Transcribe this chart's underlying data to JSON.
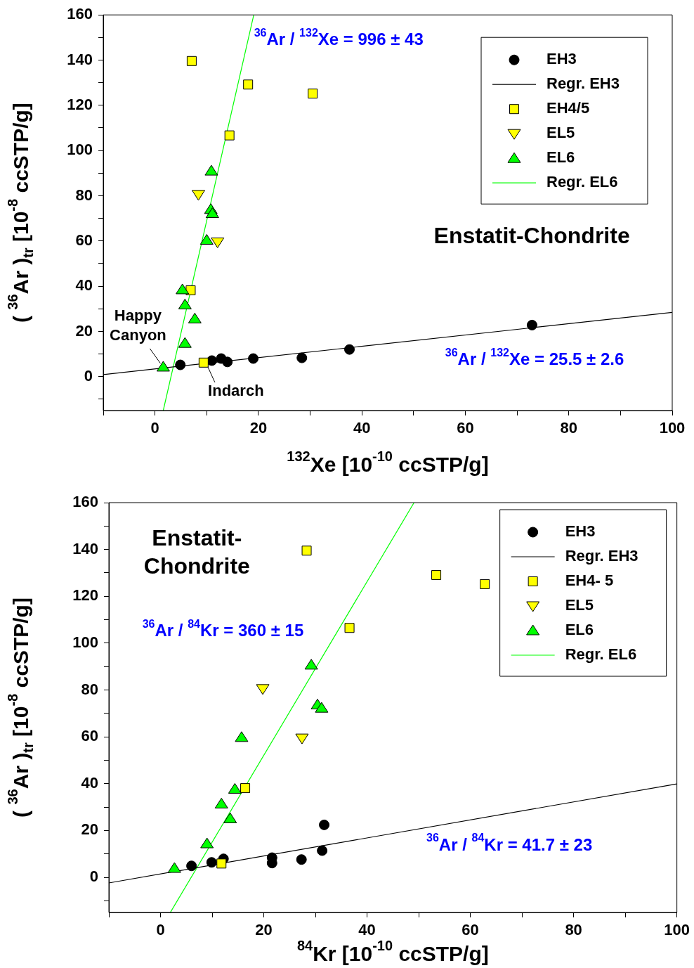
{
  "chart_data": [
    {
      "type": "scatter",
      "xlabel": "$^{132}$Xe [10$^{-10}$ ccSTP/g]",
      "ylabel": "( $^{36}$Ar )$_{tr}$ [10$^{-8}$ ccSTP/g]",
      "xlim": [
        -10,
        100
      ],
      "ylim": [
        -15,
        160
      ],
      "xticks": [
        {
          "value": -10,
          "label": null
        },
        0,
        {
          "value": 10,
          "label": null
        },
        20,
        {
          "value": 30,
          "label": null
        },
        40,
        {
          "value": 50,
          "label": null
        },
        60,
        {
          "value": 70,
          "label": null
        },
        80,
        {
          "value": 90,
          "label": null
        },
        100
      ],
      "yticks": [
        {
          "value": -10,
          "label": null
        },
        0,
        {
          "value": 10,
          "label": null
        },
        20,
        {
          "value": 30,
          "label": null
        },
        40,
        {
          "value": 50,
          "label": null
        },
        60,
        {
          "value": 70,
          "label": null
        },
        80,
        {
          "value": 90,
          "label": null
        },
        100,
        {
          "value": 110,
          "label": null
        },
        120,
        {
          "value": 130,
          "label": null
        },
        140,
        {
          "value": 150,
          "label": null
        },
        160
      ],
      "legend": "top right",
      "series": [
        {
          "name": "EH3",
          "type": "scatter",
          "marker": "circle",
          "color": "#000000",
          "x": [
            4.9,
            11.0,
            12.8,
            14.0,
            19.0,
            28.4,
            37.6,
            72.9
          ],
          "values": [
            5.2,
            7.1,
            8.0,
            6.5,
            8.0,
            8.3,
            12.0,
            22.8
          ]
        },
        {
          "name": "Regr. EH3",
          "type": "line",
          "marker": "none",
          "color": "#000000",
          "x": [
            -10,
            100
          ],
          "values": [
            0.9,
            28.4
          ]
        },
        {
          "name": "EH4/5",
          "type": "scatter",
          "marker": "square",
          "color": "#ffff00",
          "x": [
            7.1,
            18.0,
            30.5,
            14.4,
            6.9,
            9.4
          ],
          "values": [
            139.6,
            129.2,
            125.2,
            106.7,
            38.2,
            6.2
          ]
        },
        {
          "name": "EL5",
          "type": "scatter",
          "marker": "triangle-down",
          "color": "#ffff00",
          "x": [
            8.4,
            12.1
          ],
          "values": [
            80.5,
            59.5
          ]
        },
        {
          "name": "EL6",
          "type": "scatter",
          "marker": "triangle",
          "color": "#00ff00",
          "x": [
            10.9,
            10.8,
            11.1,
            10.0,
            5.3,
            5.8,
            7.7,
            5.8,
            1.6
          ],
          "values": [
            91.0,
            74.0,
            72.2,
            60.4,
            38.5,
            31.8,
            25.6,
            14.8,
            4.3
          ]
        },
        {
          "name": "Regr. EL6",
          "type": "line",
          "marker": "none",
          "color": "#00ff00",
          "x": [
            1.6,
            19.1
          ],
          "values": [
            -15,
            160
          ]
        }
      ],
      "annotations": [
        "$^{36}$Ar / $^{132}$Xe = 996 ± 43",
        "$^{36}$Ar / $^{132}$Xe = 25.5 ± 2.6",
        "Enstatit-Chondrite",
        {
          "text": "Happy Canyon",
          "x": 1.6,
          "y": 4.3
        },
        {
          "text": "Indarch",
          "x": 9.4,
          "y": 6.2
        }
      ]
    },
    {
      "type": "scatter",
      "xlabel": "$^{84}$Kr [10$^{-10}$ ccSTP/g]",
      "ylabel": "( $^{36}$Ar )$_{tr}$ [10$^{-8}$ ccSTP/g]",
      "xlim": [
        -10,
        100
      ],
      "ylim": [
        -15,
        160
      ],
      "xticks": [
        {
          "value": -10,
          "label": null
        },
        0,
        {
          "value": 10,
          "label": null
        },
        20,
        {
          "value": 30,
          "label": null
        },
        40,
        {
          "value": 50,
          "label": null
        },
        60,
        {
          "value": 70,
          "label": null
        },
        80,
        {
          "value": 90,
          "label": null
        },
        100
      ],
      "yticks": [
        {
          "value": -10,
          "label": null
        },
        0,
        {
          "value": 10,
          "label": null
        },
        20,
        {
          "value": 30,
          "label": null
        },
        40,
        {
          "value": 50,
          "label": null
        },
        60,
        {
          "value": 70,
          "label": null
        },
        80,
        {
          "value": 90,
          "label": null
        },
        100,
        {
          "value": 110,
          "label": null
        },
        120,
        {
          "value": 130,
          "label": null
        },
        140,
        {
          "value": 150,
          "label": null
        },
        160
      ],
      "legend": "top right",
      "series": [
        {
          "name": "EH3",
          "type": "scatter",
          "marker": "circle",
          "color": "#000000",
          "x": [
            6.0,
            9.9,
            12.2,
            21.6,
            21.6,
            27.3,
            31.3,
            31.7
          ],
          "values": [
            4.9,
            6.4,
            7.9,
            8.4,
            6.1,
            7.6,
            11.4,
            22.4
          ]
        },
        {
          "name": "Regr. EH3",
          "type": "line",
          "marker": "none",
          "color": "#000000",
          "x": [
            -10,
            100
          ],
          "values": [
            -2.4,
            39.9
          ]
        },
        {
          "name": "EH4- 5",
          "type": "scatter",
          "marker": "square",
          "color": "#ffff00",
          "x": [
            28.3,
            53.4,
            62.8,
            36.6,
            16.4,
            11.8
          ],
          "values": [
            139.5,
            129.1,
            125.2,
            106.5,
            38.1,
            5.9
          ]
        },
        {
          "name": "EL5",
          "type": "scatter",
          "marker": "triangle-down",
          "color": "#ffff00",
          "x": [
            19.8,
            27.4
          ],
          "values": [
            80.5,
            59.4
          ]
        },
        {
          "name": "EL6",
          "type": "scatter",
          "marker": "triangle",
          "color": "#00ff00",
          "x": [
            29.2,
            30.4,
            31.2,
            15.7,
            14.4,
            11.8,
            13.5,
            9.0,
            2.7
          ],
          "values": [
            90.7,
            73.7,
            72.3,
            59.8,
            37.7,
            31.4,
            25.1,
            14.4,
            3.9
          ]
        },
        {
          "name": "Regr. EL6",
          "type": "line",
          "marker": "none",
          "color": "#00ff00",
          "x": [
            1.9,
            49.1
          ],
          "values": [
            -15,
            160
          ]
        }
      ],
      "annotations": [
        "Enstatit-Chondrite",
        "$^{36}$Ar / $^{84}$Kr = 360 ± 15",
        "$^{36}$Ar / $^{84}$Kr = 41.7 ± 23"
      ]
    }
  ]
}
